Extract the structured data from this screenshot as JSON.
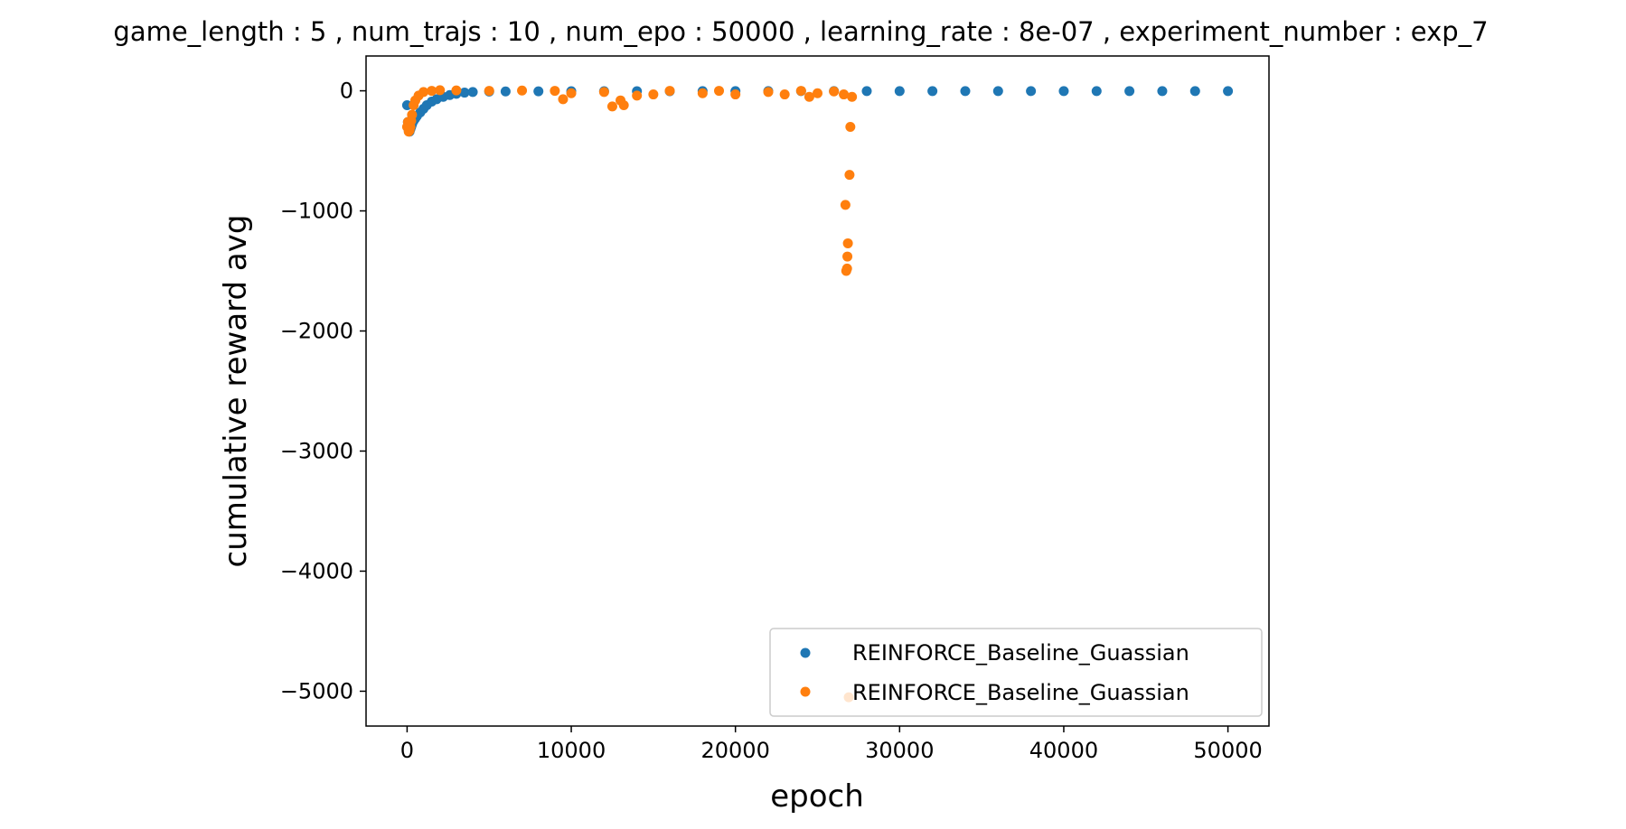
{
  "chart_data": {
    "type": "scatter",
    "title": "game_length : 5 , num_trajs : 10 , num_epo : 50000 , learning_rate : 8e-07 , experiment_number : exp_7",
    "xlabel": "epoch",
    "ylabel": "cumulative reward avg",
    "xlim": [
      -2500,
      52500
    ],
    "ylim": [
      -5290,
      290
    ],
    "x_ticks": [
      0,
      10000,
      20000,
      30000,
      40000,
      50000
    ],
    "x_tick_labels": [
      "0",
      "10000",
      "20000",
      "30000",
      "40000",
      "50000"
    ],
    "y_ticks": [
      0,
      -1000,
      -2000,
      -3000,
      -4000,
      -5000
    ],
    "y_tick_labels": [
      "0",
      "−1000",
      "−2000",
      "−3000",
      "−4000",
      "−5000"
    ],
    "grid": false,
    "legend_position": "lower right",
    "series": [
      {
        "name": "REINFORCE_Baseline_Guassian",
        "color": "#1f77b4",
        "x": [
          0,
          50,
          100,
          150,
          200,
          250,
          300,
          400,
          500,
          600,
          800,
          1000,
          1200,
          1500,
          1800,
          2200,
          2600,
          3000,
          3500,
          4000,
          5000,
          6000,
          8000,
          10000,
          12000,
          14000,
          16000,
          18000,
          20000,
          22000,
          24000,
          26000,
          28000,
          30000,
          32000,
          34000,
          36000,
          38000,
          40000,
          42000,
          44000,
          46000,
          48000,
          50000
        ],
        "y": [
          -120,
          -260,
          -330,
          -340,
          -320,
          -300,
          -280,
          -250,
          -230,
          -210,
          -180,
          -150,
          -120,
          -90,
          -70,
          -50,
          -35,
          -25,
          -15,
          -10,
          -6,
          -5,
          -4,
          -3,
          -3,
          -3,
          -3,
          -2,
          -2,
          -2,
          -2,
          -2,
          -2,
          -2,
          -2,
          -2,
          -2,
          -2,
          -2,
          -2,
          -2,
          -2,
          -2,
          -2
        ]
      },
      {
        "name": "REINFORCE_Baseline_Guassian",
        "color": "#ff7f0e",
        "x": [
          0,
          50,
          100,
          150,
          200,
          250,
          300,
          400,
          500,
          700,
          1000,
          1500,
          2000,
          3000,
          5000,
          7000,
          9000,
          9500,
          10000,
          12000,
          12500,
          13000,
          13200,
          14000,
          15000,
          16000,
          18000,
          19000,
          20000,
          22000,
          23000,
          24000,
          24500,
          25000,
          26000,
          26600,
          26700,
          26750,
          26800,
          26820,
          26850,
          26900,
          26950,
          27000,
          27100
        ],
        "y": [
          -300,
          -260,
          -340,
          -330,
          -300,
          -250,
          -200,
          -120,
          -80,
          -40,
          -10,
          0,
          5,
          3,
          0,
          2,
          0,
          -70,
          -20,
          -10,
          -130,
          -80,
          -120,
          -40,
          -30,
          0,
          -20,
          0,
          -30,
          -10,
          -30,
          0,
          -50,
          -20,
          -5,
          -30,
          -950,
          -1500,
          -1480,
          -1380,
          -1270,
          -5050,
          -700,
          -300,
          -50
        ]
      }
    ]
  }
}
